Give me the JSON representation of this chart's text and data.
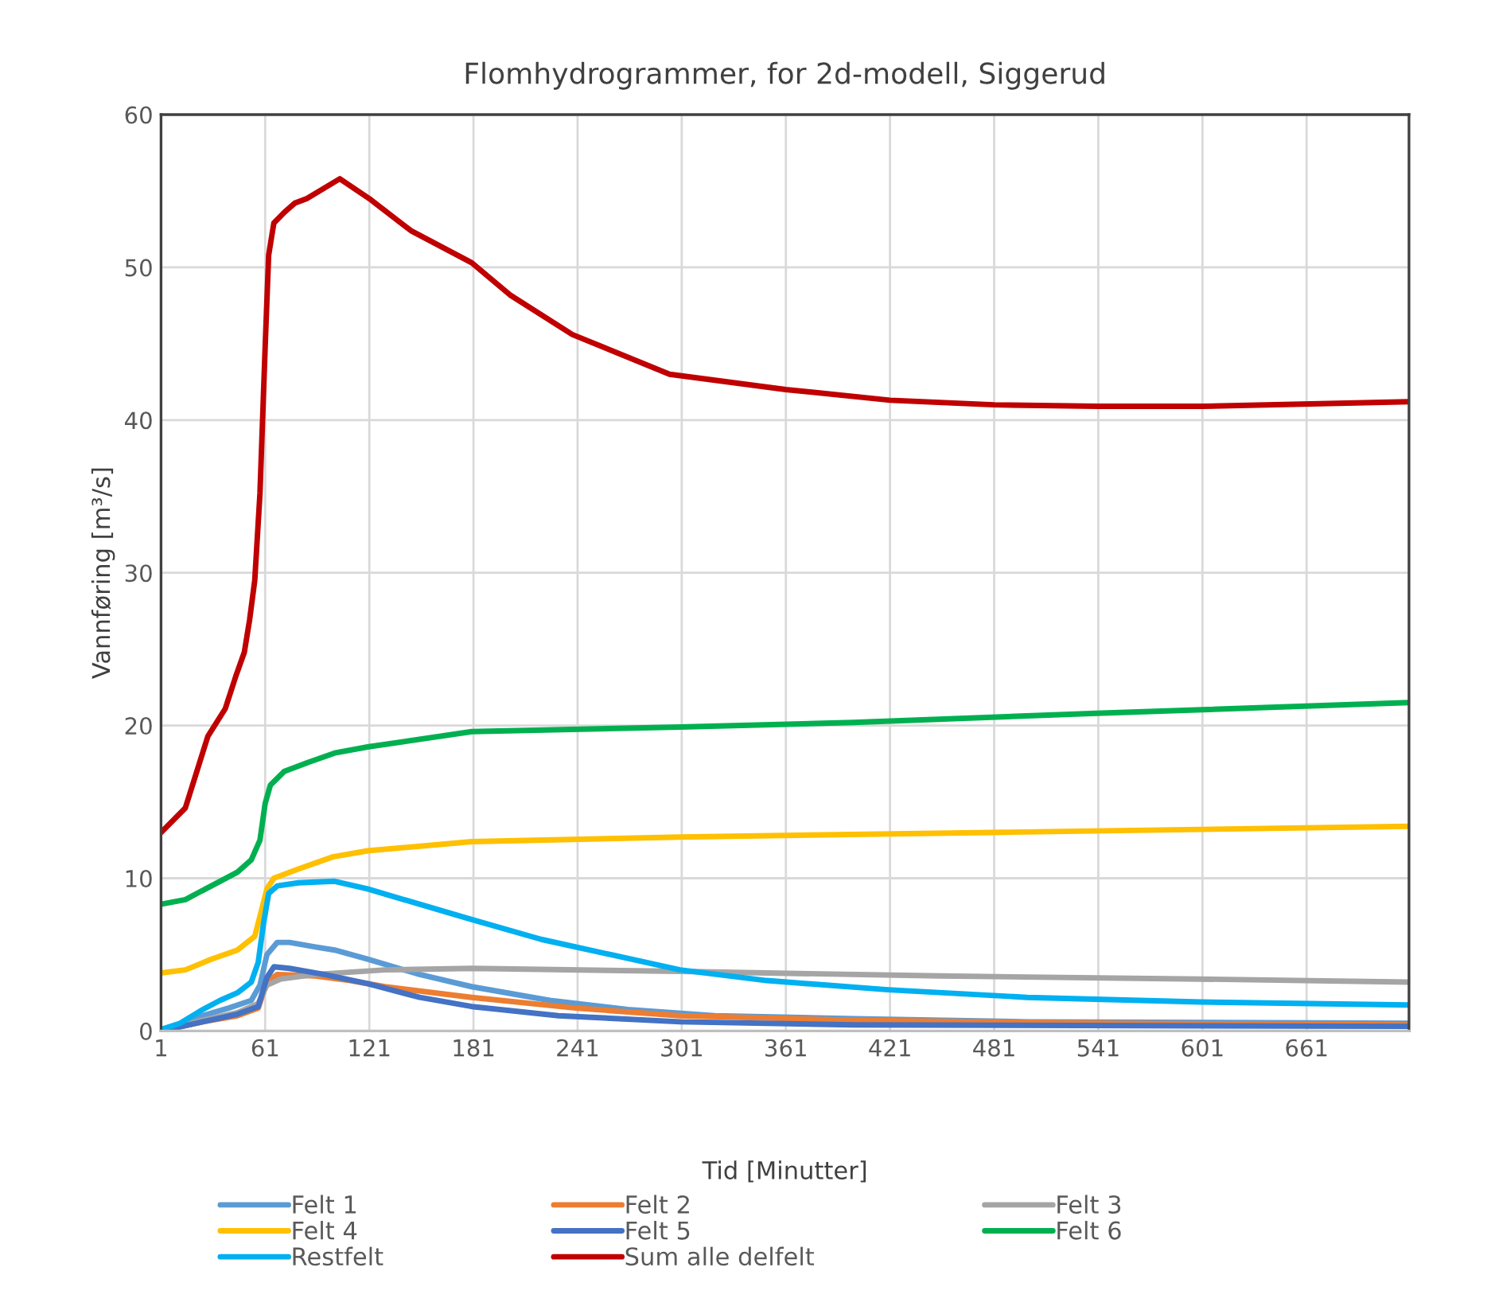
{
  "chart_data": {
    "type": "line",
    "title": "Flomhydrogrammer, for 2d-modell, Siggerud",
    "xlabel": "Tid [Minutter]",
    "ylabel": "Vannføring [m³/s]",
    "xlim": [
      1,
      720
    ],
    "xticks": [
      1,
      61,
      121,
      181,
      241,
      301,
      361,
      421,
      481,
      541,
      601,
      661
    ],
    "ylim": [
      0,
      60
    ],
    "yticks": [
      0,
      10,
      20,
      30,
      40,
      50,
      60
    ],
    "grid": true,
    "legend": "bottom",
    "marker": "none",
    "line_style": "solid",
    "series": [
      {
        "name": "Felt 1",
        "color": "#5b9bd5",
        "x": [
          1,
          12,
          25,
          40,
          53,
          58,
          62,
          68,
          75,
          90,
          101,
          120,
          150,
          180,
          225,
          270,
          320,
          400,
          500,
          720
        ],
        "values": [
          0.1,
          0.3,
          1.0,
          1.5,
          2.0,
          3.0,
          5.0,
          5.8,
          5.8,
          5.5,
          5.3,
          4.7,
          3.7,
          2.9,
          2.0,
          1.4,
          1.0,
          0.8,
          0.6,
          0.5
        ]
      },
      {
        "name": "Felt 2",
        "color": "#ed7d31",
        "x": [
          1,
          25,
          45,
          57,
          62,
          68,
          90,
          110,
          130,
          180,
          240,
          300,
          400,
          550,
          720
        ],
        "values": [
          0,
          0.6,
          1.0,
          1.5,
          3.2,
          3.7,
          3.6,
          3.3,
          2.9,
          2.2,
          1.5,
          1.0,
          0.7,
          0.5,
          0.4
        ]
      },
      {
        "name": "Felt 3",
        "color": "#a5a5a5",
        "x": [
          1,
          25,
          45,
          57,
          62,
          70,
          90,
          130,
          180,
          300,
          450,
          600,
          720
        ],
        "values": [
          0,
          0.7,
          1.2,
          1.8,
          3.0,
          3.4,
          3.7,
          4.0,
          4.1,
          3.9,
          3.6,
          3.4,
          3.2
        ]
      },
      {
        "name": "Felt 4",
        "color": "#ffc000",
        "x": [
          1,
          15,
          30,
          45,
          55,
          58,
          62,
          66,
          80,
          100,
          120,
          180,
          300,
          480,
          720
        ],
        "values": [
          3.8,
          4.0,
          4.7,
          5.3,
          6.2,
          7.5,
          9.3,
          10.0,
          10.6,
          11.4,
          11.8,
          12.4,
          12.7,
          13.0,
          13.4
        ]
      },
      {
        "name": "Felt 5",
        "color": "#4472c4",
        "x": [
          1,
          25,
          45,
          57,
          62,
          66,
          75,
          95,
          120,
          150,
          180,
          230,
          300,
          400,
          720
        ],
        "values": [
          0,
          0.6,
          1.1,
          1.6,
          3.5,
          4.2,
          4.1,
          3.7,
          3.1,
          2.2,
          1.6,
          1.0,
          0.6,
          0.4,
          0.3
        ]
      },
      {
        "name": "Felt 6",
        "color": "#00b050",
        "x": [
          1,
          15,
          30,
          45,
          53,
          58,
          61,
          64,
          72,
          86,
          101,
          120,
          180,
          300,
          400,
          540,
          720
        ],
        "values": [
          8.3,
          8.6,
          9.5,
          10.4,
          11.2,
          12.5,
          14.9,
          16.1,
          17.0,
          17.6,
          18.2,
          18.6,
          19.6,
          19.9,
          20.2,
          20.8,
          21.5
        ]
      },
      {
        "name": "Restfelt",
        "color": "#00b0f0",
        "x": [
          1,
          12,
          25,
          35,
          45,
          53,
          57,
          60,
          63,
          68,
          80,
          101,
          120,
          150,
          180,
          220,
          260,
          300,
          350,
          420,
          500,
          600,
          720
        ],
        "values": [
          0.1,
          0.5,
          1.4,
          2.0,
          2.5,
          3.2,
          4.5,
          7.0,
          9.0,
          9.5,
          9.7,
          9.8,
          9.3,
          8.3,
          7.3,
          6.0,
          5.0,
          4.0,
          3.3,
          2.7,
          2.2,
          1.9,
          1.7
        ]
      },
      {
        "name": "Sum alle delfelt",
        "color": "#c00000",
        "x": [
          1,
          15,
          28,
          38,
          44,
          49,
          52,
          55,
          58,
          61,
          63,
          66,
          72,
          78,
          85,
          104,
          121,
          145,
          180,
          202,
          238,
          294,
          361,
          421,
          481,
          541,
          601,
          720
        ],
        "values": [
          13.0,
          14.6,
          19.3,
          21.1,
          23.2,
          24.8,
          26.9,
          29.5,
          35.2,
          44.8,
          50.8,
          52.9,
          53.6,
          54.2,
          54.5,
          55.8,
          54.5,
          52.4,
          50.3,
          48.2,
          45.6,
          43.0,
          42.0,
          41.3,
          41.0,
          40.9,
          40.9,
          41.2
        ]
      }
    ]
  }
}
